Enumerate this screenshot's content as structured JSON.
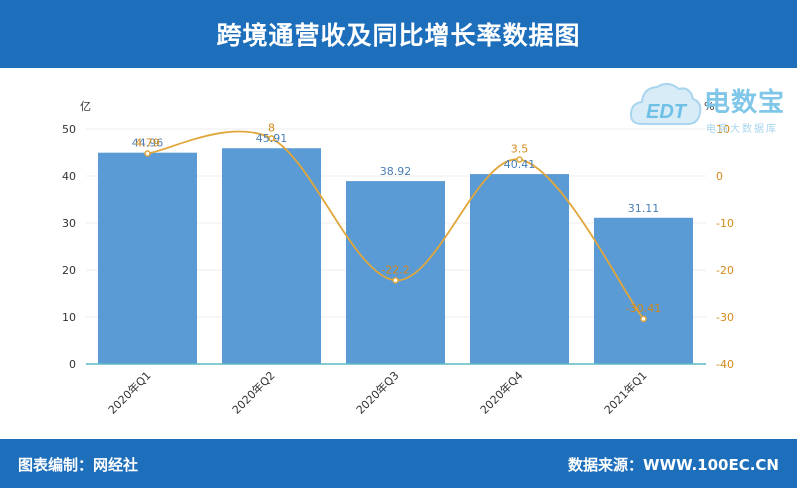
{
  "header": {
    "title": "跨境通营收及同比增长率数据图"
  },
  "footer": {
    "left": "图表编制：网经社",
    "right": "数据来源：WWW.100EC.CN"
  },
  "logo": {
    "main": "电数宝",
    "sub": "电商大数据库",
    "mark": "EDT"
  },
  "colors": {
    "bar": "#5b9bd5",
    "line": "#e1a63a",
    "header": "#1e6fbb"
  },
  "chart_data": {
    "type": "bar",
    "categories": [
      "2020年Q1",
      "2020年Q2",
      "2020年Q3",
      "2020年Q4",
      "2021年Q1"
    ],
    "series": [
      {
        "values": [
          44.96,
          45.91,
          38.92,
          40.41,
          31.11
        ],
        "axis": "left",
        "type": "bar"
      },
      {
        "values": [
          4.79,
          8,
          -22.2,
          3.5,
          -30.41
        ],
        "axis": "right",
        "type": "line"
      }
    ],
    "left_axis": {
      "unit": "亿",
      "range": [
        0,
        50
      ],
      "ticks": [
        0,
        10,
        20,
        30,
        40,
        50
      ]
    },
    "right_axis": {
      "unit": "%",
      "range": [
        -40,
        10
      ],
      "ticks": [
        -40,
        -30,
        -20,
        -10,
        0,
        10
      ]
    },
    "bar_labels": [
      "44.96",
      "45.91",
      "38.92",
      "40.41",
      "31.11"
    ],
    "line_labels": [
      "4.79",
      "8",
      "-22.2",
      "3.5",
      "-30.41"
    ],
    "grid": true,
    "legend": "none"
  }
}
